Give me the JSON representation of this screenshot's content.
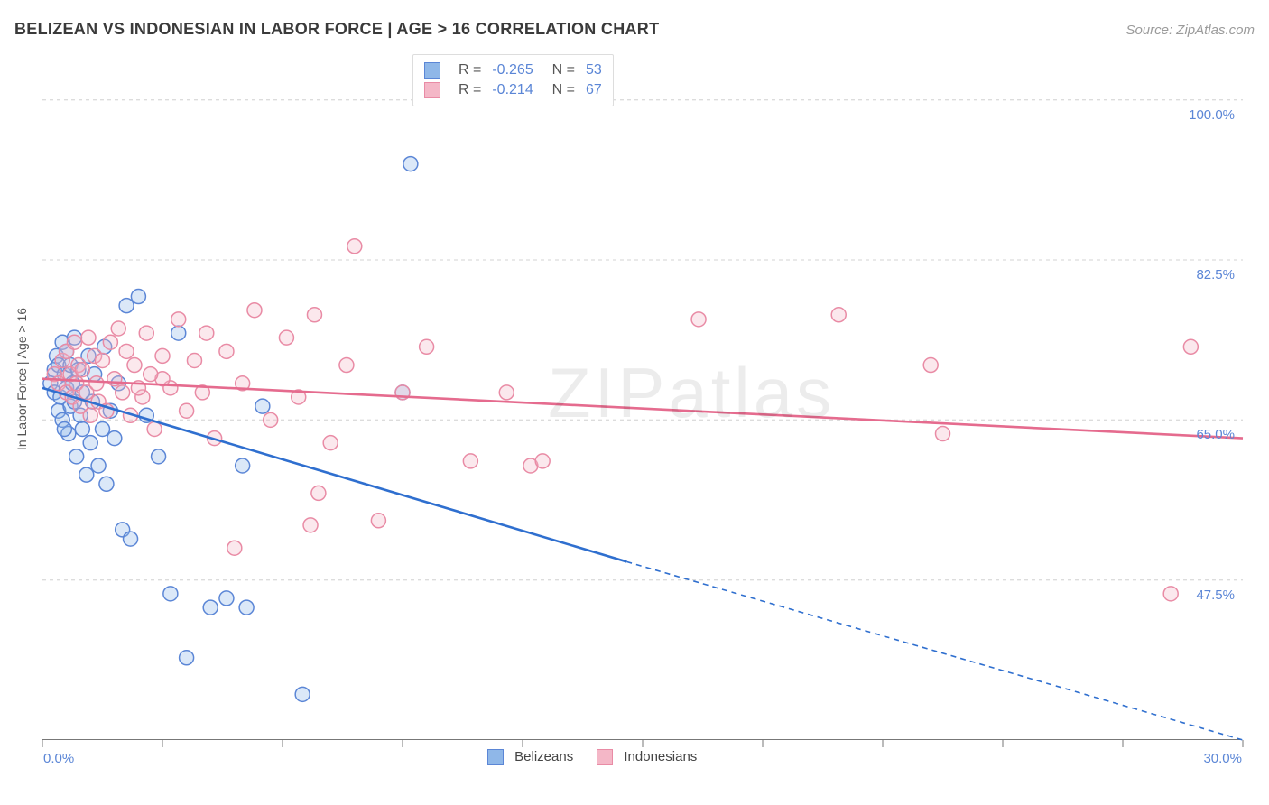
{
  "header": {
    "title": "BELIZEAN VS INDONESIAN IN LABOR FORCE | AGE > 16 CORRELATION CHART",
    "source": "Source: ZipAtlas.com"
  },
  "chart": {
    "type": "scatter",
    "xlim": [
      0,
      30
    ],
    "ylim": [
      30,
      105
    ],
    "x_ticks": [
      0,
      3,
      6,
      9,
      12,
      15,
      18,
      21,
      24,
      27,
      30
    ],
    "y_gridlines": [
      47.5,
      65.0,
      82.5,
      100.0
    ],
    "y_tick_labels": [
      "47.5%",
      "65.0%",
      "82.5%",
      "100.0%"
    ],
    "x_left_label": "0.0%",
    "x_right_label": "30.0%",
    "y_axis_label": "In Labor Force | Age > 16",
    "background_color": "#ffffff",
    "grid_color": "#dcdcdc",
    "axis_color": "#777777",
    "tick_label_color": "#5b86d6",
    "marker_radius": 8,
    "watermark": "ZIPatlas",
    "series": [
      {
        "name": "Belizeans",
        "marker_fill": "#8fb7e8",
        "marker_stroke": "#5b86d6",
        "line_color": "#2f6fcf",
        "R": "-0.265",
        "N": "53",
        "trend": {
          "x1": 0,
          "y1": 68.5,
          "x2": 14.6,
          "y2": 49.5,
          "dash_x2": 30,
          "dash_y2": 30
        },
        "points": [
          [
            0.2,
            69
          ],
          [
            0.3,
            68
          ],
          [
            0.3,
            70.5
          ],
          [
            0.35,
            72
          ],
          [
            0.4,
            66
          ],
          [
            0.4,
            71
          ],
          [
            0.45,
            67.5
          ],
          [
            0.5,
            73.5
          ],
          [
            0.5,
            65
          ],
          [
            0.55,
            70
          ],
          [
            0.6,
            68.5
          ],
          [
            0.6,
            72.5
          ],
          [
            0.65,
            63.5
          ],
          [
            0.7,
            71
          ],
          [
            0.7,
            66.5
          ],
          [
            0.75,
            69
          ],
          [
            0.8,
            67
          ],
          [
            0.8,
            74
          ],
          [
            0.85,
            61
          ],
          [
            0.9,
            70.5
          ],
          [
            0.95,
            65.5
          ],
          [
            1.0,
            68
          ],
          [
            1.1,
            59
          ],
          [
            1.15,
            72
          ],
          [
            1.2,
            62.5
          ],
          [
            1.25,
            67
          ],
          [
            1.3,
            70
          ],
          [
            1.4,
            60
          ],
          [
            1.5,
            64
          ],
          [
            1.55,
            73
          ],
          [
            1.6,
            58
          ],
          [
            1.7,
            66
          ],
          [
            1.8,
            63
          ],
          [
            1.9,
            69
          ],
          [
            2.0,
            53
          ],
          [
            2.1,
            77.5
          ],
          [
            2.2,
            52
          ],
          [
            2.4,
            78.5
          ],
          [
            2.6,
            65.5
          ],
          [
            2.9,
            61
          ],
          [
            3.2,
            46
          ],
          [
            3.4,
            74.5
          ],
          [
            3.6,
            39
          ],
          [
            4.2,
            44.5
          ],
          [
            4.6,
            45.5
          ],
          [
            5.0,
            60
          ],
          [
            5.1,
            44.5
          ],
          [
            5.5,
            66.5
          ],
          [
            6.5,
            35
          ],
          [
            9.0,
            68
          ],
          [
            9.2,
            93
          ],
          [
            1.0,
            64
          ],
          [
            0.55,
            64
          ]
        ]
      },
      {
        "name": "Indonesians",
        "marker_fill": "#f4b7c7",
        "marker_stroke": "#e98ba5",
        "line_color": "#e56b8e",
        "R": "-0.214",
        "N": "67",
        "trend": {
          "x1": 0,
          "y1": 69.5,
          "x2": 30,
          "y2": 63
        },
        "points": [
          [
            0.3,
            70
          ],
          [
            0.4,
            69
          ],
          [
            0.5,
            71.5
          ],
          [
            0.6,
            68
          ],
          [
            0.6,
            72.5
          ],
          [
            0.7,
            70
          ],
          [
            0.75,
            67.5
          ],
          [
            0.8,
            73.5
          ],
          [
            0.85,
            69
          ],
          [
            0.9,
            71
          ],
          [
            0.95,
            66.5
          ],
          [
            1.0,
            70.5
          ],
          [
            1.1,
            68
          ],
          [
            1.15,
            74
          ],
          [
            1.2,
            65.5
          ],
          [
            1.3,
            72
          ],
          [
            1.35,
            69
          ],
          [
            1.4,
            67
          ],
          [
            1.5,
            71.5
          ],
          [
            1.6,
            66
          ],
          [
            1.7,
            73.5
          ],
          [
            1.8,
            69.5
          ],
          [
            1.9,
            75
          ],
          [
            2.0,
            68
          ],
          [
            2.1,
            72.5
          ],
          [
            2.2,
            65.5
          ],
          [
            2.3,
            71
          ],
          [
            2.5,
            67.5
          ],
          [
            2.6,
            74.5
          ],
          [
            2.8,
            64
          ],
          [
            3.0,
            72
          ],
          [
            3.2,
            68.5
          ],
          [
            3.4,
            76
          ],
          [
            3.6,
            66
          ],
          [
            3.8,
            71.5
          ],
          [
            4.1,
            74.5
          ],
          [
            4.3,
            63
          ],
          [
            4.6,
            72.5
          ],
          [
            5.0,
            69
          ],
          [
            5.3,
            77
          ],
          [
            5.7,
            65
          ],
          [
            6.1,
            74
          ],
          [
            6.4,
            67.5
          ],
          [
            6.8,
            76.5
          ],
          [
            7.2,
            62.5
          ],
          [
            7.6,
            71
          ],
          [
            7.8,
            84
          ],
          [
            8.4,
            54
          ],
          [
            9.0,
            68
          ],
          [
            9.6,
            73
          ],
          [
            4.8,
            51
          ],
          [
            6.7,
            53.5
          ],
          [
            6.9,
            57
          ],
          [
            10.7,
            60.5
          ],
          [
            11.6,
            68
          ],
          [
            12.2,
            60
          ],
          [
            12.5,
            60.5
          ],
          [
            16.4,
            76
          ],
          [
            19.9,
            76.5
          ],
          [
            22.2,
            71
          ],
          [
            22.5,
            63.5
          ],
          [
            28.2,
            46
          ],
          [
            28.7,
            73
          ],
          [
            3.0,
            69.5
          ],
          [
            2.7,
            70
          ],
          [
            2.4,
            68.5
          ],
          [
            4.0,
            68
          ]
        ]
      }
    ],
    "legend_bottom": [
      {
        "label": "Belizeans",
        "fill": "#8fb7e8",
        "stroke": "#5b86d6"
      },
      {
        "label": "Indonesians",
        "fill": "#f4b7c7",
        "stroke": "#e98ba5"
      }
    ]
  }
}
